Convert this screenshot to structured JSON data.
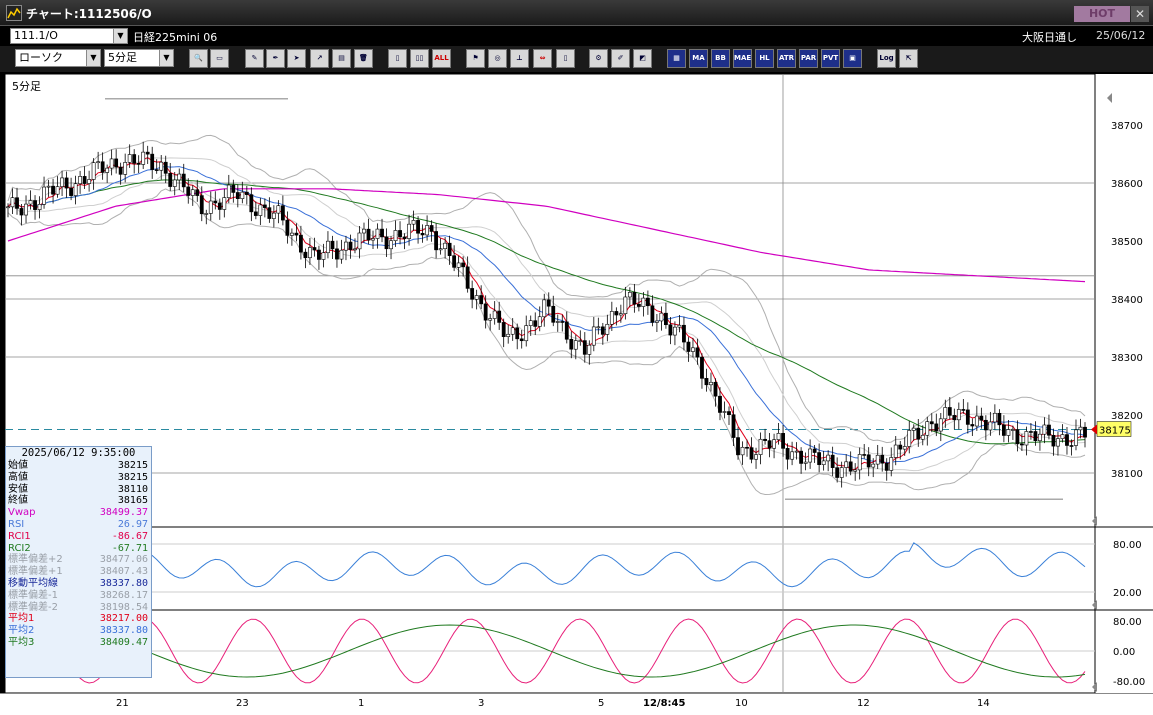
{
  "window": {
    "title": "チャート:1112506/O",
    "hot_label": "HOT",
    "close_label": "✕"
  },
  "symbol_bar": {
    "symbol": "111.1/O",
    "instrument": "日経225mini 06",
    "market": "大阪日通し",
    "date": "25/06/12"
  },
  "toolbar": {
    "chart_type": "ローソク",
    "period": "5分足",
    "buttons": [
      "ALL",
      "MA",
      "BB",
      "MAE",
      "HL",
      "ATR",
      "PAR",
      "PVT",
      "Log"
    ]
  },
  "chart": {
    "period_label": "5分足",
    "y_ticks": [
      "38700",
      "38600",
      "38500",
      "38400",
      "38300",
      "38200",
      "38100"
    ],
    "last_price_label": "38175",
    "rsi_ticks": [
      "80.00",
      "20.00"
    ],
    "rci_ticks": [
      "80.00",
      "0.00",
      "-80.00"
    ],
    "x_labels": [
      "21",
      "23",
      "1",
      "3",
      "5",
      "12/8:45",
      "10",
      "12",
      "14"
    ]
  },
  "info_panel": {
    "timestamp": "2025/06/12 9:35:00",
    "rows": [
      {
        "label": "始値",
        "value": "38215",
        "color": "#000000"
      },
      {
        "label": "高値",
        "value": "38215",
        "color": "#000000"
      },
      {
        "label": "安値",
        "value": "38110",
        "color": "#000000"
      },
      {
        "label": "終値",
        "value": "38165",
        "color": "#000000"
      },
      {
        "label": "Vwap",
        "value": "38499.37",
        "color": "#d000c0"
      },
      {
        "label": "RSI",
        "value": "26.97",
        "color": "#4a7ad8"
      },
      {
        "label": "RCI1",
        "value": "-86.67",
        "color": "#e0004a"
      },
      {
        "label": "RCI2",
        "value": "-67.71",
        "color": "#207a20"
      },
      {
        "label": "標準偏差+2",
        "value": "38477.06",
        "color": "#9aa0a8"
      },
      {
        "label": "標準偏差+1",
        "value": "38407.43",
        "color": "#9aa0a8"
      },
      {
        "label": "移動平均線",
        "value": "38337.80",
        "color": "#1a2a9a"
      },
      {
        "label": "標準偏差-1",
        "value": "38268.17",
        "color": "#9aa0a8"
      },
      {
        "label": "標準偏差-2",
        "value": "38198.54",
        "color": "#9aa0a8"
      },
      {
        "label": "平均1",
        "value": "38217.00",
        "color": "#e0001a"
      },
      {
        "label": "平均2",
        "value": "38337.80",
        "color": "#3a70d8"
      },
      {
        "label": "平均3",
        "value": "38409.47",
        "color": "#207a20"
      }
    ]
  },
  "colors": {
    "ma1": "#e0001a",
    "ma2": "#3a70d8",
    "ma3": "#207a20",
    "vwap": "#d000c0",
    "bands": "#b0b0b0",
    "rsi": "#3a80d8",
    "rci1": "#e8207a",
    "rci2": "#207a20",
    "last_price_bg": "#ffff66"
  },
  "chart_data": {
    "type": "candlestick",
    "price_close_approx": [
      38550,
      38580,
      38610,
      38640,
      38630,
      38560,
      38580,
      38540,
      38470,
      38500,
      38510,
      38520,
      38420,
      38330,
      38380,
      38310,
      38400,
      38370,
      38290,
      38140,
      38150,
      38120,
      38110,
      38130,
      38190,
      38200,
      38170,
      38160,
      38165
    ],
    "vwap_approx": [
      38500,
      38560,
      38590,
      38590,
      38580,
      38560,
      38520,
      38480,
      38450,
      38440,
      38430
    ]
  }
}
